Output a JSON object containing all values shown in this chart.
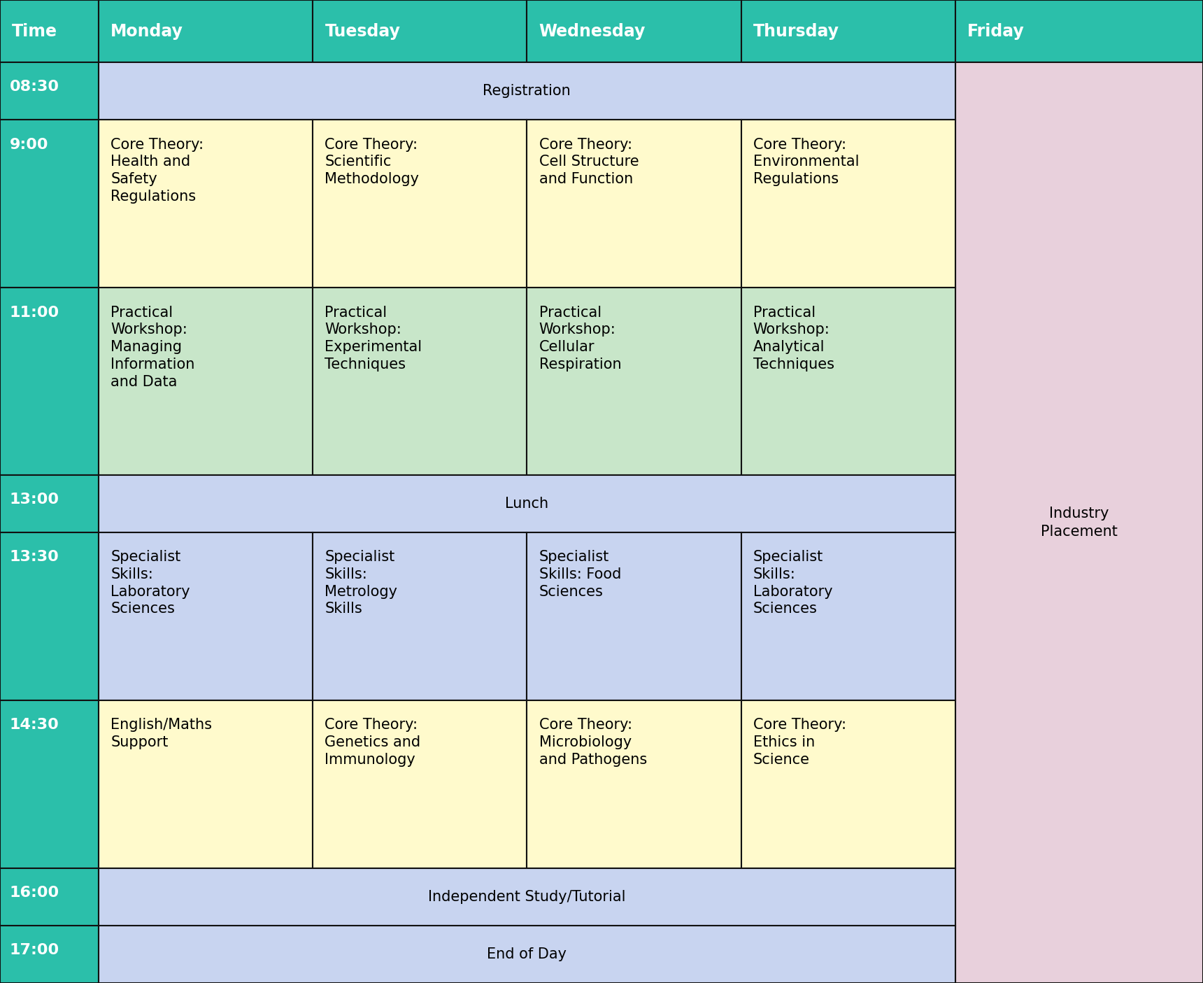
{
  "header_bg": "#2BBFAA",
  "header_text_color": "#FFFFFF",
  "col_headers": [
    "Time",
    "Monday",
    "Tuesday",
    "Wednesday",
    "Thursday",
    "Friday"
  ],
  "colors": {
    "registration": "#C8D4F0",
    "core_theory": "#FFFACC",
    "practical": "#C8E6C9",
    "lunch": "#C8D4F0",
    "specialist": "#C8D4F0",
    "independent": "#C8D4F0",
    "end": "#C8D4F0",
    "industry": "#E8D0DC"
  },
  "rows": [
    {
      "time": "08:30",
      "cells": [
        {
          "text": "Registration",
          "color": "#C8D4F0",
          "colspan": 4
        }
      ]
    },
    {
      "time": "9:00",
      "cells": [
        {
          "text": "Core Theory:\nHealth and\nSafety\nRegulations",
          "color": "#FFFACC"
        },
        {
          "text": "Core Theory:\nScientific\nMethodology",
          "color": "#FFFACC"
        },
        {
          "text": "Core Theory:\nCell Structure\nand Function",
          "color": "#FFFACC"
        },
        {
          "text": "Core Theory:\nEnvironmental\nRegulations",
          "color": "#FFFACC"
        }
      ]
    },
    {
      "time": "11:00",
      "cells": [
        {
          "text": "Practical\nWorkshop:\nManaging\nInformation\nand Data",
          "color": "#C8E6C9"
        },
        {
          "text": "Practical\nWorkshop:\nExperimental\nTechniques",
          "color": "#C8E6C9"
        },
        {
          "text": "Practical\nWorkshop:\nCellular\nRespiration",
          "color": "#C8E6C9"
        },
        {
          "text": "Practical\nWorkshop:\nAnalytical\nTechniques",
          "color": "#C8E6C9"
        }
      ]
    },
    {
      "time": "13:00",
      "cells": [
        {
          "text": "Lunch",
          "color": "#C8D4F0",
          "colspan": 4
        }
      ]
    },
    {
      "time": "13:30",
      "cells": [
        {
          "text": "Specialist\nSkills:\nLaboratory\nSciences",
          "color": "#C8D4F0"
        },
        {
          "text": "Specialist\nSkills:\nMetrology\nSkills",
          "color": "#C8D4F0"
        },
        {
          "text": "Specialist\nSkills: Food\nSciences",
          "color": "#C8D4F0"
        },
        {
          "text": "Specialist\nSkills:\nLaboratory\nSciences",
          "color": "#C8D4F0"
        }
      ]
    },
    {
      "time": "14:30",
      "cells": [
        {
          "text": "English/Maths\nSupport",
          "color": "#FFFACC"
        },
        {
          "text": "Core Theory:\nGenetics and\nImmunology",
          "color": "#FFFACC"
        },
        {
          "text": "Core Theory:\nMicrobiology\nand Pathogens",
          "color": "#FFFACC"
        },
        {
          "text": "Core Theory:\nEthics in\nScience",
          "color": "#FFFACC"
        }
      ]
    },
    {
      "time": "16:00",
      "cells": [
        {
          "text": "Independent Study/Tutorial",
          "color": "#C8D4F0",
          "colspan": 4
        }
      ]
    },
    {
      "time": "17:00",
      "cells": [
        {
          "text": "End of Day",
          "color": "#C8D4F0",
          "colspan": 4
        }
      ]
    }
  ],
  "friday_text": "Industry\nPlacement",
  "friday_color": "#E8D0DC",
  "header_fontsize": 17,
  "time_fontsize": 16,
  "cell_fontsize": 15,
  "span_fontsize": 15
}
